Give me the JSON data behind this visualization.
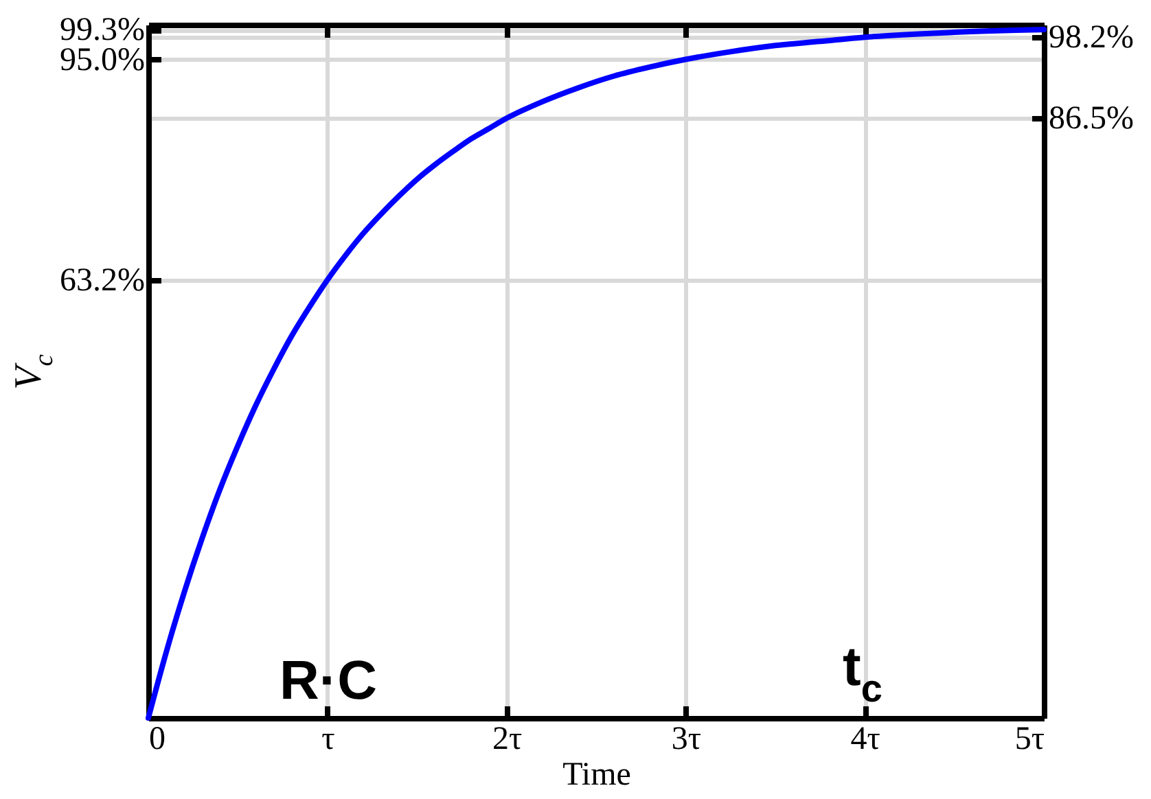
{
  "chart_data": {
    "type": "line",
    "xlabel": "Time",
    "ylabel": "V$_{c}$",
    "x": [
      0,
      0.1,
      0.2,
      0.3,
      0.4,
      0.5,
      0.6,
      0.7,
      0.8,
      0.9,
      1.0,
      1.1,
      1.2,
      1.3,
      1.4,
      1.5,
      1.6,
      1.7,
      1.8,
      1.9,
      2.0,
      2.2,
      2.4,
      2.6,
      2.8,
      3.0,
      3.25,
      3.5,
      3.75,
      4.0,
      4.5,
      5.0
    ],
    "values": [
      0,
      9.5,
      18.1,
      25.9,
      33.0,
      39.3,
      45.1,
      50.3,
      55.1,
      59.3,
      63.2,
      66.7,
      69.9,
      72.7,
      75.3,
      77.7,
      79.8,
      81.7,
      83.5,
      85.0,
      86.5,
      88.9,
      90.9,
      92.6,
      93.9,
      95.0,
      96.1,
      97.0,
      97.6,
      98.2,
      98.9,
      99.3
    ],
    "color": "#0000ff",
    "xlim": [
      0,
      5
    ],
    "xticks": [
      0,
      {
        "value": 1,
        "label": "τ"
      },
      {
        "value": 2,
        "label": "2τ"
      },
      {
        "value": 3,
        "label": "3τ"
      },
      {
        "value": 4,
        "label": "4τ"
      },
      {
        "value": 5,
        "label": "5τ"
      }
    ],
    "ylim": [
      0,
      100
    ],
    "yticks": [
      {
        "value": 63.2,
        "label": "63.2%"
      },
      {
        "value": 95.0,
        "label": "95.0%"
      },
      {
        "value": 99.3,
        "label": "99.3%"
      }
    ],
    "y2lim": [
      0,
      100
    ],
    "y2ticks": [
      {
        "value": 86.5,
        "label": "86.5%"
      },
      {
        "value": 98.2,
        "label": "98.2%"
      }
    ],
    "grid": true,
    "annotations": [
      "R·C",
      "t$_{c}$"
    ]
  }
}
